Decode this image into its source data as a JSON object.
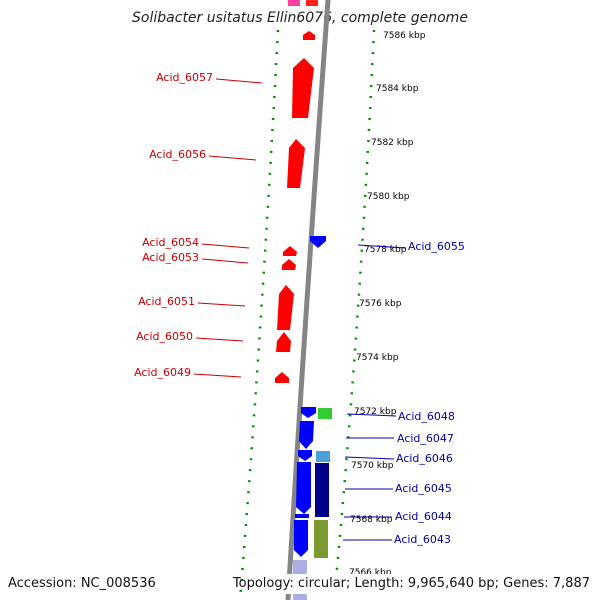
{
  "title": "Solibacter usitatus Ellin6076, complete genome",
  "footer": {
    "accession": "Accession: NC_008536",
    "topology": "Topology: circular; Length: 9,965,640 bp; Genes: 7,887"
  },
  "colors": {
    "forward_strand": "#ff0000",
    "reverse_strand": "#0000ff",
    "left_label": "#cc0000",
    "right_label": "#0000aa",
    "tick": "#008800",
    "backbone": "#808080"
  },
  "ticks": [
    "7586 kbp",
    "7584 kbp",
    "7582 kbp",
    "7580 kbp",
    "7578 kbp",
    "7576 kbp",
    "7574 kbp",
    "7572 kbp",
    "7570 kbp",
    "7568 kbp",
    "7566 kbp"
  ],
  "left_genes": [
    {
      "label": "Acid_6057"
    },
    {
      "label": "Acid_6056"
    },
    {
      "label": "Acid_6054"
    },
    {
      "label": "Acid_6053"
    },
    {
      "label": "Acid_6051"
    },
    {
      "label": "Acid_6050"
    },
    {
      "label": "Acid_6049"
    }
  ],
  "right_genes": [
    {
      "label": "Acid_6055"
    },
    {
      "label": "Acid_6048"
    },
    {
      "label": "Acid_6047"
    },
    {
      "label": "Acid_6046"
    },
    {
      "label": "Acid_6045"
    },
    {
      "label": "Acid_6044"
    },
    {
      "label": "Acid_6043"
    }
  ]
}
